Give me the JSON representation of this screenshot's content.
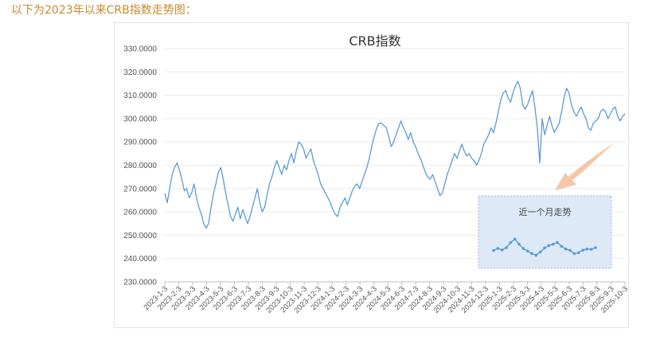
{
  "intro_text": "以下为2023年以来CRB指数走势图：",
  "colors": {
    "line": "#5b9bd5",
    "inset_bg": "#dde9f6",
    "inset_border": "#9ab8d8",
    "arrow": "#f5c7a6",
    "intro": "#c98a2b"
  },
  "chart_data": {
    "type": "line",
    "title": "CRB指数",
    "xlabel": "",
    "ylabel": "",
    "ylim": [
      230,
      330
    ],
    "y_ticks": [
      "230.0000",
      "240.0000",
      "250.0000",
      "260.0000",
      "270.0000",
      "280.0000",
      "290.0000",
      "300.0000",
      "310.0000",
      "320.0000",
      "330.0000"
    ],
    "x_ticks": [
      "2023-1-3",
      "2023-2-3",
      "2023-3-3",
      "2023-4-3",
      "2023-5-3",
      "2023-6-3",
      "2023-7-3",
      "2023-8-3",
      "2023-9-3",
      "2023-10-3",
      "2023-11-3",
      "2023-12-3",
      "2024-1-3",
      "2024-2-3",
      "2024-3-3",
      "2024-4-3",
      "2024-5-3",
      "2024-6-3",
      "2024-7-3",
      "2024-8-3",
      "2024-9-3",
      "2024-10-3",
      "2024-11-3",
      "2024-12-3",
      "2025-1-3",
      "2025-2-3",
      "2025-3-3",
      "2025-4-3",
      "2025-5-3",
      "2025-6-3",
      "2025-7-3",
      "2025-8-3",
      "2025-9-3",
      "2025-10-3"
    ],
    "series": [
      {
        "values": [
          268,
          264,
          270,
          276,
          279,
          281,
          278,
          274,
          269,
          270,
          266,
          268,
          272,
          266,
          262,
          259,
          255,
          253,
          255,
          262,
          268,
          272,
          277,
          279,
          274,
          268,
          263,
          258,
          256,
          259,
          262,
          257,
          261,
          258,
          255,
          258,
          262,
          266,
          270,
          264,
          260,
          262,
          267,
          272,
          275,
          279,
          282,
          279,
          276,
          280,
          278,
          282,
          285,
          281,
          286,
          290,
          289,
          287,
          283,
          285,
          287,
          282,
          279,
          276,
          272,
          270,
          268,
          266,
          264,
          261,
          259,
          258,
          262,
          264,
          266,
          263,
          266,
          269,
          271,
          272,
          270,
          273,
          276,
          279,
          283,
          288,
          292,
          296,
          298,
          298,
          297,
          296,
          292,
          288,
          290,
          293,
          296,
          299,
          296,
          294,
          291,
          294,
          290,
          288,
          285,
          283,
          280,
          277,
          275,
          274,
          276,
          273,
          270,
          267,
          268,
          272,
          276,
          279,
          282,
          285,
          283,
          286,
          289,
          286,
          284,
          285,
          283,
          282,
          280,
          282,
          285,
          289,
          291,
          293,
          296,
          294,
          298,
          303,
          308,
          311,
          312,
          309,
          307,
          311,
          314,
          316,
          313,
          306,
          304,
          306,
          309,
          312,
          305,
          296,
          281,
          300,
          293,
          297,
          301,
          297,
          294,
          296,
          298,
          303,
          309,
          313,
          311,
          306,
          303,
          301,
          303,
          305,
          302,
          300,
          296,
          295,
          298,
          299,
          300,
          303,
          304,
          303,
          300,
          302,
          304,
          305,
          301,
          299,
          301,
          302
        ],
        "markers": false
      }
    ],
    "inset": {
      "title": "近一个月走势",
      "series": [
        {
          "values": [
            247.3,
            248.6,
            247.6,
            249.0,
            252.0,
            254.0,
            251.0,
            248.5,
            247.0,
            245.5,
            244.5,
            246.5,
            248.8,
            250.2,
            251.0,
            252.0,
            249.8,
            248.2,
            247.4,
            245.5,
            246.0,
            247.5,
            248.2,
            248.0,
            249.0
          ],
          "markers": true
        }
      ]
    }
  }
}
